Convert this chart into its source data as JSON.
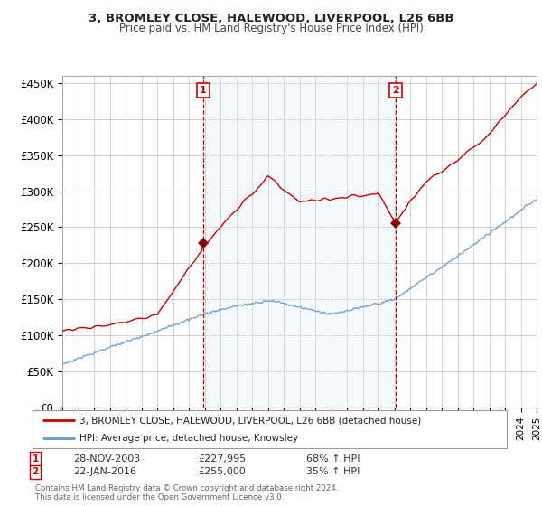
{
  "title": "3, BROMLEY CLOSE, HALEWOOD, LIVERPOOL, L26 6BB",
  "subtitle": "Price paid vs. HM Land Registry's House Price Index (HPI)",
  "ylim": [
    0,
    460000
  ],
  "yticks": [
    0,
    50000,
    100000,
    150000,
    200000,
    250000,
    300000,
    350000,
    400000,
    450000
  ],
  "ytick_labels": [
    "£0",
    "£50K",
    "£100K",
    "£150K",
    "£200K",
    "£250K",
    "£300K",
    "£350K",
    "£400K",
    "£450K"
  ],
  "hpi_color": "#6699cc",
  "price_color": "#cc0000",
  "marker1_label": "28-NOV-2003",
  "marker1_text": "£227,995",
  "marker1_pct": "68% ↑ HPI",
  "marker2_label": "22-JAN-2016",
  "marker2_text": "£255,000",
  "marker2_pct": "35% ↑ HPI",
  "legend_line1": "3, BROMLEY CLOSE, HALEWOOD, LIVERPOOL, L26 6BB (detached house)",
  "legend_line2": "HPI: Average price, detached house, Knowsley",
  "footer": "Contains HM Land Registry data © Crown copyright and database right 2024.\nThis data is licensed under the Open Government Licence v3.0.",
  "background_color": "#ffffff",
  "grid_color": "#cccccc",
  "shade_color": "#ddeeff"
}
